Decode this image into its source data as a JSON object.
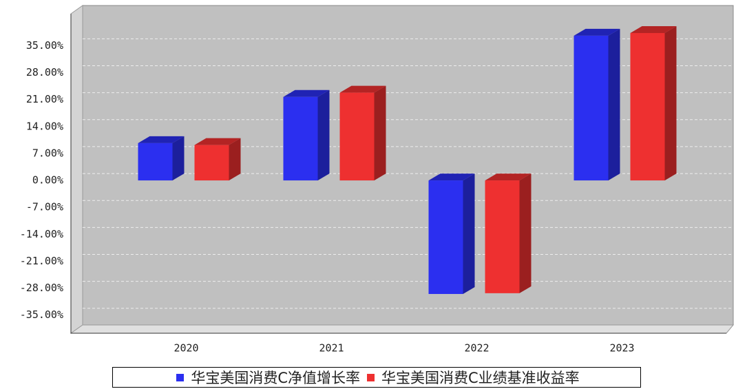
{
  "chart_data": {
    "type": "bar3d",
    "categories": [
      "2020",
      "2021",
      "2022",
      "2023"
    ],
    "series": [
      {
        "name": "华宝美国消费C净值增长率",
        "color": "#2b2ff0",
        "values": [
          9.7,
          21.7,
          -29.5,
          37.6
        ]
      },
      {
        "name": "华宝美国消费C业绩基准收益率",
        "color": "#ee3030",
        "values": [
          9.2,
          22.8,
          -29.3,
          38.3
        ]
      }
    ],
    "ylim": [
      -39.7,
      43.3
    ],
    "yticks": [
      {
        "value": 35,
        "label": "35.00%"
      },
      {
        "value": 28,
        "label": "28.00%"
      },
      {
        "value": 21,
        "label": "21.00%"
      },
      {
        "value": 14,
        "label": "14.00%"
      },
      {
        "value": 7,
        "label": "7.00%"
      },
      {
        "value": 0,
        "label": "0.00%"
      },
      {
        "value": -7,
        "label": "-7.00%"
      },
      {
        "value": -14,
        "label": "-14.00%"
      },
      {
        "value": -21,
        "label": "-21.00%"
      },
      {
        "value": -28,
        "label": "-28.00%"
      },
      {
        "value": -35,
        "label": "-35.00%"
      }
    ],
    "grid": true
  }
}
